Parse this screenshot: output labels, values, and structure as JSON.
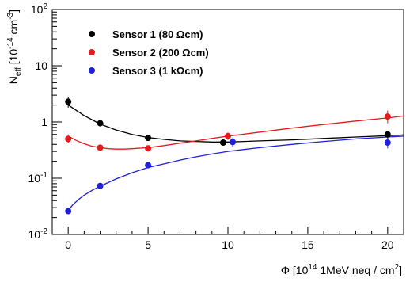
{
  "chart_data": {
    "type": "scatter",
    "title": "",
    "xlabel": {
      "main": "Φ [10",
      "sup": "14",
      "rest": " 1MeV neq / cm",
      "sup2": "2",
      "end": "]"
    },
    "ylabel": {
      "main": "N",
      "sub": "eff",
      "mid": " [10",
      "sup": "-14",
      "rest": " cm",
      "sup2": "-3",
      "end": "]"
    },
    "x_range": [
      -1,
      21
    ],
    "y_range": [
      0.01,
      100
    ],
    "y_scale": "log",
    "grid": false,
    "legend_position": "top-left",
    "x_ticks": [
      0,
      5,
      10,
      15,
      20
    ],
    "x_tick_labels": [
      "0",
      "5",
      "10",
      "15",
      "20"
    ],
    "y_ticks": [
      {
        "value": 0.01,
        "base": "10",
        "exp": "-2"
      },
      {
        "value": 0.1,
        "base": "10",
        "exp": "-1"
      },
      {
        "value": 1,
        "base": "1",
        "exp": ""
      },
      {
        "value": 10,
        "base": "10",
        "exp": ""
      },
      {
        "value": 100,
        "base": "10",
        "exp": "2"
      }
    ],
    "series": [
      {
        "name": "Sensor 1 (80 Ωcm)",
        "color": "#000000",
        "points": [
          {
            "x": 0,
            "y": 2.3,
            "ylo": 1.8,
            "yhi": 2.8
          },
          {
            "x": 2,
            "y": 0.95,
            "ylo": 0.85,
            "yhi": 1.05
          },
          {
            "x": 5,
            "y": 0.52,
            "ylo": 0.48,
            "yhi": 0.57
          },
          {
            "x": 9.7,
            "y": 0.43,
            "ylo": 0.38,
            "yhi": 0.5
          },
          {
            "x": 20,
            "y": 0.6,
            "ylo": 0.5,
            "yhi": 0.7
          }
        ],
        "fit": [
          [
            0,
            2.0
          ],
          [
            1,
            1.3
          ],
          [
            2,
            0.92
          ],
          [
            3,
            0.72
          ],
          [
            4,
            0.6
          ],
          [
            5,
            0.53
          ],
          [
            6,
            0.49
          ],
          [
            7,
            0.46
          ],
          [
            8,
            0.45
          ],
          [
            9,
            0.44
          ],
          [
            10,
            0.44
          ],
          [
            11,
            0.45
          ],
          [
            12,
            0.46
          ],
          [
            14,
            0.48
          ],
          [
            16,
            0.51
          ],
          [
            18,
            0.54
          ],
          [
            20,
            0.57
          ],
          [
            21,
            0.59
          ]
        ]
      },
      {
        "name": "Sensor 2 (200 Ωcm)",
        "color": "#e41a1c",
        "points": [
          {
            "x": 0,
            "y": 0.5,
            "ylo": 0.42,
            "yhi": 0.6
          },
          {
            "x": 2,
            "y": 0.35,
            "ylo": 0.33,
            "yhi": 0.37
          },
          {
            "x": 5,
            "y": 0.34,
            "ylo": 0.32,
            "yhi": 0.36
          },
          {
            "x": 10,
            "y": 0.56,
            "ylo": 0.48,
            "yhi": 0.65
          },
          {
            "x": 20,
            "y": 1.25,
            "ylo": 0.95,
            "yhi": 1.6
          }
        ],
        "fit": [
          [
            0,
            0.56
          ],
          [
            0.5,
            0.47
          ],
          [
            1,
            0.41
          ],
          [
            1.5,
            0.37
          ],
          [
            2,
            0.35
          ],
          [
            2.5,
            0.335
          ],
          [
            3,
            0.33
          ],
          [
            3.5,
            0.33
          ],
          [
            4,
            0.335
          ],
          [
            5,
            0.35
          ],
          [
            6,
            0.38
          ],
          [
            7,
            0.42
          ],
          [
            8,
            0.46
          ],
          [
            9,
            0.51
          ],
          [
            10,
            0.56
          ],
          [
            12,
            0.66
          ],
          [
            14,
            0.78
          ],
          [
            16,
            0.9
          ],
          [
            18,
            1.04
          ],
          [
            20,
            1.18
          ],
          [
            21,
            1.28
          ]
        ]
      },
      {
        "name": "Sensor 3 (1 kΩcm)",
        "color": "#1f1fe0",
        "points": [
          {
            "x": 0,
            "y": 0.026,
            "ylo": 0.024,
            "yhi": 0.028
          },
          {
            "x": 2,
            "y": 0.073,
            "ylo": 0.069,
            "yhi": 0.077
          },
          {
            "x": 5,
            "y": 0.17,
            "ylo": 0.16,
            "yhi": 0.18
          },
          {
            "x": 10.3,
            "y": 0.44,
            "ylo": 0.36,
            "yhi": 0.52
          },
          {
            "x": 20,
            "y": 0.43,
            "ylo": 0.34,
            "yhi": 0.52
          }
        ],
        "fit": [
          [
            0.05,
            0.028
          ],
          [
            0.3,
            0.034
          ],
          [
            0.7,
            0.043
          ],
          [
            1,
            0.05
          ],
          [
            1.5,
            0.061
          ],
          [
            2,
            0.072
          ],
          [
            3,
            0.097
          ],
          [
            4,
            0.125
          ],
          [
            5,
            0.155
          ],
          [
            6,
            0.18
          ],
          [
            7,
            0.21
          ],
          [
            8,
            0.24
          ],
          [
            9,
            0.27
          ],
          [
            10,
            0.3
          ],
          [
            11,
            0.325
          ],
          [
            12,
            0.35
          ],
          [
            14,
            0.4
          ],
          [
            16,
            0.45
          ],
          [
            18,
            0.5
          ],
          [
            20,
            0.54
          ],
          [
            21,
            0.56
          ]
        ]
      }
    ]
  }
}
